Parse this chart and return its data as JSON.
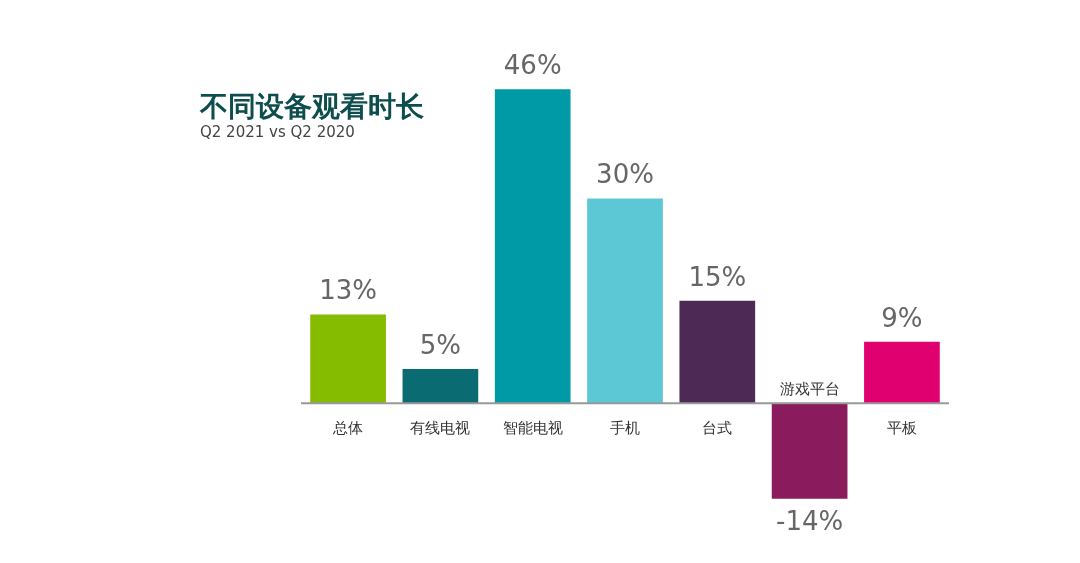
{
  "chart_data": {
    "type": "bar",
    "title": "不同设备观看时长",
    "subtitle": "Q2 2021 vs Q2 2020",
    "categories": [
      "总体",
      "有线电视",
      "智能电视",
      "手机",
      "台式",
      "游戏平台",
      "平板"
    ],
    "values": [
      13,
      5,
      46,
      30,
      15,
      -14,
      9
    ],
    "colors": [
      "#86bc00",
      "#0b6b73",
      "#009aa6",
      "#5cc8d6",
      "#4d2a55",
      "#8a1b5c",
      "#e0006f"
    ],
    "value_labels": [
      "13%",
      "5%",
      "46%",
      "30%",
      "15%",
      "-14%",
      "9%"
    ]
  }
}
